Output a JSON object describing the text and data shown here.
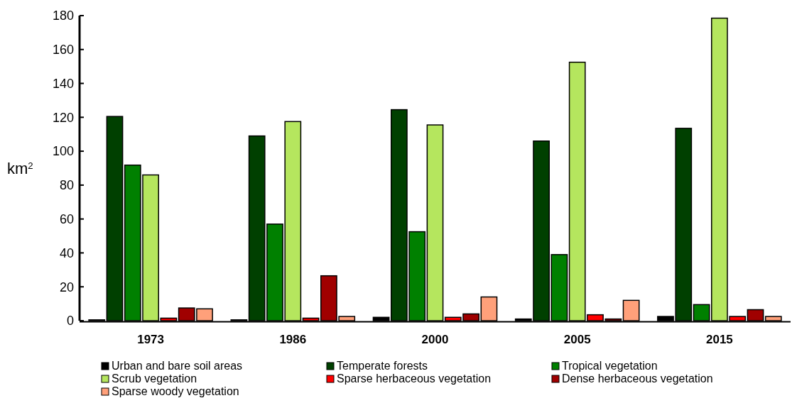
{
  "chart_data": {
    "type": "bar",
    "ylabel": "km$^{2}$",
    "categories": [
      "1973",
      "1986",
      "2000",
      "2005",
      "2015"
    ],
    "series": [
      {
        "name": "Urban and bare soil areas",
        "color": "#000000",
        "values": [
          0.5,
          0.5,
          2,
          1,
          2.5
        ]
      },
      {
        "name": "Temperate forests",
        "color": "#004000",
        "values": [
          120.5,
          109,
          124.5,
          106,
          113.5
        ]
      },
      {
        "name": "Tropical vegetation",
        "color": "#008000",
        "values": [
          91.8,
          57,
          52.5,
          39,
          9.5
        ]
      },
      {
        "name": "Scrub vegetation",
        "color": "#b5e65e",
        "values": [
          86,
          117.5,
          115.5,
          152.5,
          178.5
        ]
      },
      {
        "name": "Sparse herbaceous vegetation",
        "color": "#ff0000",
        "values": [
          1.5,
          1.5,
          2,
          3.5,
          2.5
        ]
      },
      {
        "name": "Dense herbaceous vegetation",
        "color": "#a00000",
        "values": [
          7.5,
          26.5,
          4,
          1,
          6.5
        ]
      },
      {
        "name": "Sparse woody vegetation",
        "color": "#ffa07a",
        "values": [
          7,
          2.5,
          14,
          12,
          2.5
        ]
      }
    ],
    "ylim": [
      0,
      180
    ],
    "yticks": [
      0,
      20,
      40,
      60,
      80,
      100,
      120,
      140,
      160,
      180
    ],
    "grid": false,
    "legend": "bottom"
  }
}
